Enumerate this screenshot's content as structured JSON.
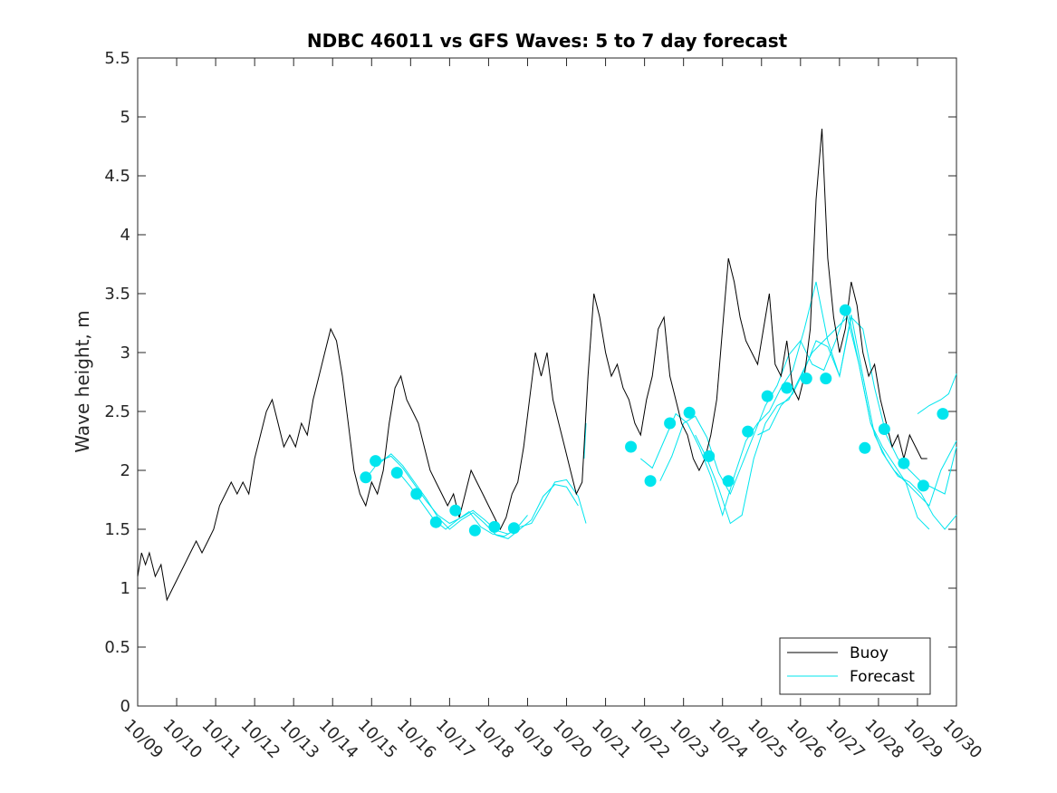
{
  "chart_data": {
    "type": "line",
    "title": "NDBC 46011 vs GFS Waves: 5 to 7 day forecast",
    "xlabel": "",
    "ylabel": "Wave height, m",
    "ylim": [
      0,
      5.5
    ],
    "xlim": [
      0,
      21
    ],
    "yticks": [
      0,
      0.5,
      1,
      1.5,
      2,
      2.5,
      3,
      3.5,
      4,
      4.5,
      5,
      5.5
    ],
    "ytick_labels": [
      "0",
      "0.5",
      "1",
      "1.5",
      "2",
      "2.5",
      "3",
      "3.5",
      "4",
      "4.5",
      "5",
      "5.5"
    ],
    "xtick_labels": [
      "10/09",
      "10/10",
      "10/11",
      "10/12",
      "10/13",
      "10/14",
      "10/15",
      "10/16",
      "10/17",
      "10/18",
      "10/19",
      "10/20",
      "10/21",
      "10/22",
      "10/23",
      "10/24",
      "10/25",
      "10/26",
      "10/27",
      "10/28",
      "10/29",
      "10/30"
    ],
    "x_units": "days since 10/09",
    "grid": false,
    "legend_position": "bottom-right",
    "legend": [
      {
        "label": "Buoy",
        "color": "#000000"
      },
      {
        "label": "Forecast",
        "color": "#00e5ee"
      }
    ],
    "series": [
      {
        "name": "Buoy",
        "color": "#000000",
        "x": [
          0,
          0.1,
          0.2,
          0.3,
          0.45,
          0.6,
          0.75,
          0.9,
          1.05,
          1.2,
          1.35,
          1.5,
          1.65,
          1.8,
          1.95,
          2.1,
          2.25,
          2.4,
          2.55,
          2.7,
          2.85,
          3.0,
          3.15,
          3.3,
          3.45,
          3.6,
          3.75,
          3.9,
          4.05,
          4.2,
          4.35,
          4.5,
          4.65,
          4.8,
          4.95,
          5.1,
          5.25,
          5.4,
          5.55,
          5.7,
          5.85,
          6.0,
          6.15,
          6.3,
          6.45,
          6.6,
          6.75,
          6.9,
          7.05,
          7.2,
          7.35,
          7.5,
          7.65,
          7.8,
          7.95,
          8.1,
          8.25,
          8.4,
          8.55,
          8.7,
          8.85,
          9.0,
          9.15,
          9.3,
          9.45,
          9.6,
          9.75,
          9.9,
          10.05,
          10.2,
          10.35,
          10.5,
          10.65,
          10.8,
          10.95,
          11.1,
          11.25,
          11.4,
          11.55,
          11.7,
          11.85,
          12.0,
          12.15,
          12.3,
          12.45,
          12.6,
          12.75,
          12.9,
          13.05,
          13.2,
          13.35,
          13.5,
          13.65,
          13.8,
          13.95,
          14.1,
          14.25,
          14.4,
          14.55,
          14.7,
          14.85,
          15.0,
          15.15,
          15.3,
          15.45,
          15.6,
          15.75,
          15.9,
          16.05,
          16.2,
          16.35,
          16.5,
          16.65,
          16.8,
          16.95,
          17.1,
          17.25,
          17.4,
          17.55,
          17.7,
          17.85,
          18.0,
          18.15,
          18.3,
          18.45,
          18.6,
          18.75,
          18.9,
          19.05,
          19.2,
          19.35,
          19.5,
          19.65,
          19.8,
          19.95,
          20.1,
          20.25
        ],
        "values": [
          1.1,
          1.3,
          1.2,
          1.3,
          1.1,
          1.2,
          0.9,
          1.0,
          1.1,
          1.2,
          1.3,
          1.4,
          1.3,
          1.4,
          1.5,
          1.7,
          1.8,
          1.9,
          1.8,
          1.9,
          1.8,
          2.1,
          2.3,
          2.5,
          2.6,
          2.4,
          2.2,
          2.3,
          2.2,
          2.4,
          2.3,
          2.6,
          2.8,
          3.0,
          3.2,
          3.1,
          2.8,
          2.4,
          2.0,
          1.8,
          1.7,
          1.9,
          1.8,
          2.0,
          2.4,
          2.7,
          2.8,
          2.6,
          2.5,
          2.4,
          2.2,
          2.0,
          1.9,
          1.8,
          1.7,
          1.8,
          1.6,
          1.8,
          2.0,
          1.9,
          1.8,
          1.7,
          1.6,
          1.5,
          1.6,
          1.8,
          1.9,
          2.2,
          2.6,
          3.0,
          2.8,
          3.0,
          2.6,
          2.4,
          2.2,
          2.0,
          1.8,
          1.9,
          2.8,
          3.5,
          3.3,
          3.0,
          2.8,
          2.9,
          2.7,
          2.6,
          2.4,
          2.3,
          2.6,
          2.8,
          3.2,
          3.3,
          2.8,
          2.6,
          2.4,
          2.3,
          2.1,
          2.0,
          2.1,
          2.3,
          2.6,
          3.2,
          3.8,
          3.6,
          3.3,
          3.1,
          3.0,
          2.9,
          3.2,
          3.5,
          2.9,
          2.8,
          3.1,
          2.7,
          2.6,
          2.8,
          3.2,
          4.3,
          4.9,
          3.8,
          3.3,
          3.0,
          3.2,
          3.6,
          3.4,
          3.0,
          2.8,
          2.9,
          2.6,
          2.4,
          2.2,
          2.3,
          2.1,
          2.3,
          2.2,
          2.1,
          2.1
        ]
      },
      {
        "name": "Forecast",
        "color": "#00e5ee",
        "lines": [
          {
            "x": [
              5.9,
              6.2,
              6.5,
              6.8,
              7.1,
              7.4,
              7.7,
              8.0,
              8.3,
              8.6,
              8.9,
              9.2,
              9.5,
              9.8,
              10.1,
              10.4,
              10.7,
              11.0,
              11.3,
              11.5
            ],
            "values": [
              1.95,
              2.08,
              2.12,
              2.02,
              1.88,
              1.74,
              1.62,
              1.55,
              1.6,
              1.66,
              1.58,
              1.49,
              1.46,
              1.52,
              1.55,
              1.72,
              1.9,
              1.92,
              1.78,
              1.55
            ]
          },
          {
            "x": [
              6.2,
              6.5,
              6.8,
              7.1,
              7.4,
              7.7,
              8.0,
              8.3,
              8.6,
              8.9,
              9.2,
              9.5,
              9.8,
              10.1,
              10.4,
              10.7,
              11.0,
              11.3
            ],
            "values": [
              2.06,
              2.14,
              2.04,
              1.9,
              1.76,
              1.6,
              1.5,
              1.58,
              1.64,
              1.55,
              1.45,
              1.42,
              1.5,
              1.58,
              1.78,
              1.88,
              1.86,
              1.7
            ]
          },
          {
            "x": [
              6.7,
              7.0,
              7.3,
              7.6,
              7.9,
              8.2,
              8.5,
              8.8,
              9.1,
              9.4,
              9.7,
              10.0
            ],
            "values": [
              1.98,
              1.86,
              1.72,
              1.58,
              1.5,
              1.58,
              1.65,
              1.52,
              1.46,
              1.44,
              1.5,
              1.62
            ]
          },
          {
            "x": [
              11.45,
              11.5
            ],
            "values": [
              2.1,
              2.4
            ]
          },
          {
            "x": [
              13.4,
              13.7,
              14.0,
              14.3,
              14.6,
              14.9,
              15.2,
              15.5,
              15.8,
              16.1,
              16.4,
              16.7,
              17.0,
              17.3,
              17.6,
              17.9,
              18.2,
              18.5,
              18.8,
              19.1,
              19.4,
              19.7,
              20.0,
              20.3,
              20.6,
              21.0
            ],
            "values": [
              1.91,
              2.12,
              2.4,
              2.46,
              2.28,
              1.98,
              1.8,
              2.05,
              2.3,
              2.55,
              2.72,
              2.98,
              3.1,
              2.9,
              2.85,
              3.1,
              3.38,
              2.9,
              2.4,
              2.2,
              2.05,
              1.9,
              1.8,
              1.7,
              2.0,
              2.25
            ]
          },
          {
            "x": [
              12.9,
              13.2,
              13.5,
              13.8,
              14.1,
              14.4,
              14.7,
              15.0,
              15.3,
              15.6,
              15.9,
              16.2,
              16.5,
              16.8,
              17.1,
              17.4,
              17.7,
              18.0,
              18.3,
              18.6,
              18.9,
              19.2,
              19.5,
              19.8,
              20.1,
              20.4,
              20.7,
              21.0
            ],
            "values": [
              2.1,
              2.02,
              2.25,
              2.48,
              2.4,
              2.2,
              1.95,
              1.62,
              1.95,
              2.25,
              2.4,
              2.5,
              2.7,
              2.85,
              3.2,
              3.6,
              3.1,
              2.8,
              3.32,
              2.8,
              2.3,
              2.1,
              1.95,
              1.9,
              1.8,
              1.62,
              1.5,
              1.62
            ]
          },
          {
            "x": [
              14.3,
              14.6,
              14.9,
              15.2,
              15.5,
              15.8,
              16.1,
              16.4,
              16.7,
              17.0,
              17.3,
              17.6,
              17.9,
              18.2,
              18.5,
              18.8,
              19.1,
              19.4,
              19.7,
              20.0,
              20.3
            ],
            "values": [
              2.3,
              2.1,
              1.85,
              1.55,
              1.62,
              2.1,
              2.4,
              2.55,
              2.6,
              2.8,
              3.0,
              3.1,
              3.2,
              3.3,
              2.9,
              2.4,
              2.15,
              2.0,
              1.9,
              1.6,
              1.5
            ]
          },
          {
            "x": [
              15.9,
              16.2,
              16.5,
              16.8,
              17.1,
              17.4,
              17.7,
              18.0,
              18.3,
              18.6,
              18.9,
              19.2,
              19.5,
              19.8,
              20.1,
              20.4,
              20.7,
              21.0
            ],
            "values": [
              2.3,
              2.35,
              2.55,
              2.65,
              2.85,
              3.1,
              3.05,
              2.8,
              3.3,
              3.2,
              2.7,
              2.3,
              2.1,
              2.0,
              1.9,
              1.85,
              1.8,
              2.2
            ]
          },
          {
            "x": [
              20.0,
              20.3,
              20.6,
              20.8,
              21.0
            ],
            "values": [
              2.48,
              2.55,
              2.6,
              2.65,
              2.82
            ]
          }
        ],
        "points": {
          "x": [
            5.85,
            6.1,
            6.65,
            7.15,
            7.65,
            8.15,
            8.65,
            9.15,
            9.65,
            12.65,
            13.15,
            13.65,
            14.15,
            14.65,
            15.15,
            15.65,
            16.15,
            16.65,
            17.15,
            17.65,
            18.15,
            18.65,
            19.15,
            19.65,
            20.15,
            20.65
          ],
          "values": [
            1.94,
            2.08,
            1.98,
            1.8,
            1.56,
            1.66,
            1.49,
            1.52,
            1.51,
            2.2,
            1.91,
            2.4,
            2.49,
            2.12,
            1.91,
            2.33,
            2.63,
            2.7,
            2.78,
            2.78,
            3.36,
            2.19,
            2.35,
            2.06,
            1.87,
            2.48
          ]
        }
      }
    ]
  }
}
